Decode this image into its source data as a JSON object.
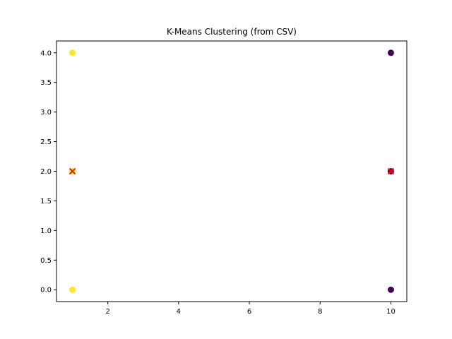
{
  "chart_data": {
    "type": "scatter",
    "title": "K-Means Clustering (from CSV)",
    "xlabel": "",
    "ylabel": "",
    "xlim": [
      0.55,
      10.45
    ],
    "ylim": [
      -0.2,
      4.2
    ],
    "xticks": [
      2,
      4,
      6,
      8,
      10
    ],
    "yticks": [
      0.0,
      0.5,
      1.0,
      1.5,
      2.0,
      2.5,
      3.0,
      3.5,
      4.0
    ],
    "grid": false,
    "points": [
      {
        "x": 1,
        "y": 2,
        "cluster": 1
      },
      {
        "x": 1,
        "y": 4,
        "cluster": 1
      },
      {
        "x": 1,
        "y": 0,
        "cluster": 1
      },
      {
        "x": 10,
        "y": 2,
        "cluster": 0
      },
      {
        "x": 10,
        "y": 4,
        "cluster": 0
      },
      {
        "x": 10,
        "y": 0,
        "cluster": 0
      }
    ],
    "centroids": [
      {
        "x": 10,
        "y": 2
      },
      {
        "x": 1,
        "y": 2
      }
    ],
    "cluster_colors": [
      "#440154",
      "#fde725"
    ],
    "centroid_color": "#ff0000"
  }
}
